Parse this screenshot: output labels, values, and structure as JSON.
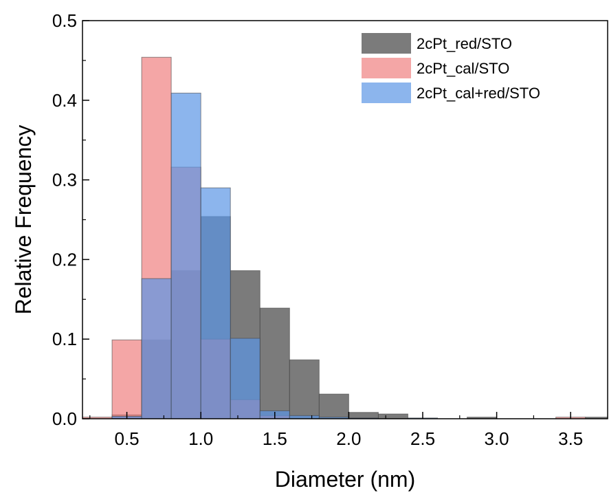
{
  "chart_data": {
    "type": "bar",
    "title": "",
    "xlabel": "Diameter (nm)",
    "ylabel": "Relative Frequency",
    "xlim": [
      0.2,
      3.75
    ],
    "ylim": [
      0,
      0.5
    ],
    "bin_width": 0.2,
    "x_ticks": [
      "0.5",
      "1.0",
      "1.5",
      "2.0",
      "2.5",
      "3.0",
      "3.5"
    ],
    "y_ticks": [
      "0.0",
      "0.1",
      "0.2",
      "0.3",
      "0.4",
      "0.5"
    ],
    "grid": false,
    "legend_position": "top-right",
    "series": [
      {
        "name": "2cPt_red/STO",
        "color": "#5a5a5a",
        "opacity": 0.8,
        "bin_starts": [
          0.4,
          0.6,
          0.8,
          1.0,
          1.2,
          1.4,
          1.6,
          1.8,
          2.0,
          2.2,
          2.4,
          2.6,
          2.8,
          3.0,
          3.2,
          3.4,
          3.6
        ],
        "values": [
          0.005,
          0.099,
          0.186,
          0.254,
          0.186,
          0.139,
          0.074,
          0.031,
          0.008,
          0.006,
          0.0,
          0.0,
          0.002,
          0.0,
          0.0,
          0.0,
          0.002
        ]
      },
      {
        "name": "2cPt_cal/STO",
        "color": "#f08080",
        "opacity": 0.7,
        "bin_starts": [
          0.2,
          0.4,
          0.6,
          0.8,
          1.0,
          1.2,
          1.4,
          1.6,
          1.8,
          2.0,
          2.2,
          2.4,
          2.6,
          2.8,
          3.0,
          3.2,
          3.4,
          3.6
        ],
        "values": [
          0.002,
          0.099,
          0.454,
          0.316,
          0.1,
          0.024,
          0.004,
          0.0,
          0.0,
          0.0,
          0.0,
          0.0,
          0.0,
          0.0,
          0.0,
          0.0,
          0.002,
          0.0
        ]
      },
      {
        "name": "2cPt_cal+red/STO",
        "color": "#5b96e6",
        "opacity": 0.7,
        "bin_starts": [
          0.4,
          0.6,
          0.8,
          1.0,
          1.2,
          1.4,
          1.6,
          1.8,
          2.0,
          2.2,
          2.4,
          2.6
        ],
        "values": [
          0.003,
          0.176,
          0.409,
          0.29,
          0.101,
          0.01,
          0.004,
          0.002,
          0.001,
          0.0,
          0.001,
          0.0
        ]
      }
    ]
  }
}
